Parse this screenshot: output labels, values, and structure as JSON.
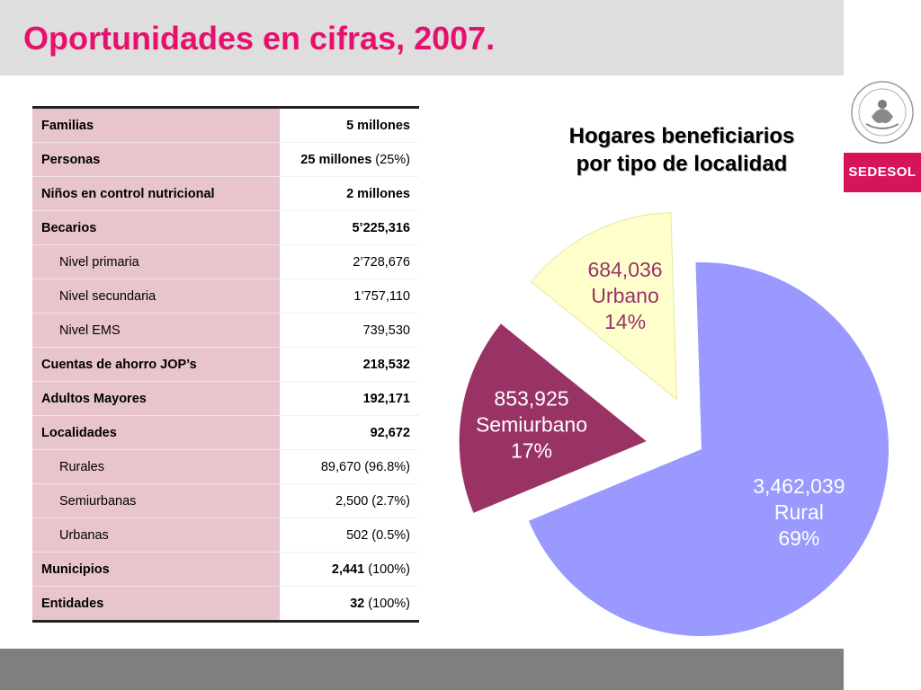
{
  "page": {
    "title": "Oportunidades en cifras, 2007.",
    "logo_text": "SEDESOL"
  },
  "table": {
    "rows": [
      {
        "label": "Familias",
        "value_strong": "5 millones",
        "value_extra": "",
        "indent": false,
        "group_start": true
      },
      {
        "label": "Personas",
        "value_strong": "25 millones",
        "value_extra": " (25%)",
        "indent": false,
        "group_start": false
      },
      {
        "label": "Niños en control nutricional",
        "value_strong": "2 millones",
        "value_extra": "",
        "indent": false,
        "group_start": false
      },
      {
        "label": "Becarios",
        "value_strong": "5’225,316",
        "value_extra": "",
        "indent": false,
        "group_start": true
      },
      {
        "label": "Nivel primaria",
        "value_strong": "",
        "value_extra": "2’728,676",
        "indent": true,
        "group_start": false
      },
      {
        "label": "Nivel secundaria",
        "value_strong": "",
        "value_extra": "1’757,110",
        "indent": true,
        "group_start": false
      },
      {
        "label": "Nivel EMS",
        "value_strong": "",
        "value_extra": "739,530",
        "indent": true,
        "group_start": false
      },
      {
        "label": "Cuentas de ahorro JOP’s",
        "value_strong": "218,532",
        "value_extra": "",
        "indent": false,
        "group_start": true
      },
      {
        "label": "Adultos Mayores",
        "value_strong": "192,171",
        "value_extra": "",
        "indent": false,
        "group_start": true
      },
      {
        "label": "Localidades",
        "value_strong": "92,672",
        "value_extra": "",
        "indent": false,
        "group_start": true
      },
      {
        "label": "Rurales",
        "value_strong": "",
        "value_extra": "89,670 (96.8%)",
        "indent": true,
        "group_start": false
      },
      {
        "label": "Semiurbanas",
        "value_strong": "",
        "value_extra": "2,500 (2.7%)",
        "indent": true,
        "group_start": false
      },
      {
        "label": "Urbanas",
        "value_strong": "",
        "value_extra": "502 (0.5%)",
        "indent": true,
        "group_start": false
      },
      {
        "label": "Municipios",
        "value_strong": "2,441",
        "value_extra": " (100%)",
        "indent": false,
        "group_start": true
      },
      {
        "label": "Entidades",
        "value_strong": "32",
        "value_extra": " (100%)",
        "indent": false,
        "group_start": false
      }
    ]
  },
  "chart_data": {
    "type": "pie",
    "title": "Hogares beneficiarios por tipo de localidad",
    "title_lines": [
      "Hogares beneficiarios",
      "por tipo de localidad"
    ],
    "slices": [
      {
        "label": "Rural",
        "value": 3462039,
        "value_text": "3,462,039",
        "percent": 69,
        "percent_text": "69%",
        "color": "#9999ff",
        "text_color": "#ffffff",
        "exploded": false
      },
      {
        "label": "Semiurbano",
        "value": 853925,
        "value_text": "853,925",
        "percent": 17,
        "percent_text": "17%",
        "color": "#993366",
        "text_color": "#ffffff",
        "exploded": true
      },
      {
        "label": "Urbano",
        "value": 684036,
        "value_text": "684,036",
        "percent": 14,
        "percent_text": "14%",
        "color": "#ffffcc",
        "text_color": "#993366",
        "exploded": true
      }
    ]
  },
  "colors": {
    "title": "#e8106e",
    "band": "#dedede",
    "footer": "#7f7f7f",
    "table_label_bg": "#e8c4cd",
    "logo_bg": "#d5145a"
  }
}
